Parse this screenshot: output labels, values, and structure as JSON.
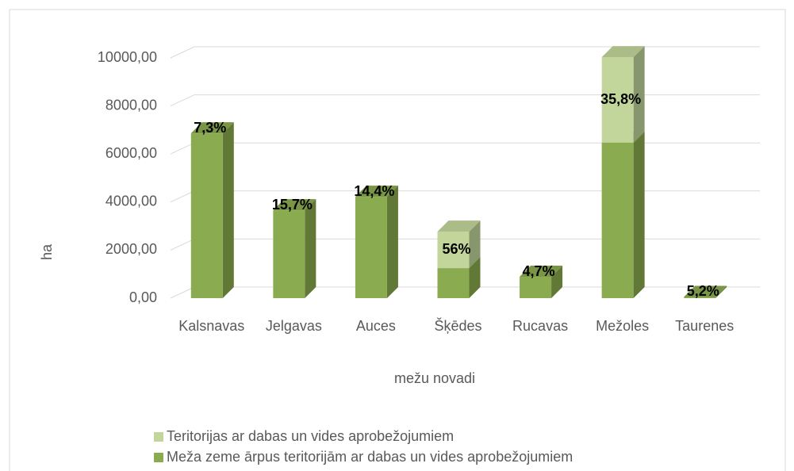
{
  "chart_data": {
    "type": "bar3d_stacked",
    "x_label": "mežu novadi",
    "y_label": "ha",
    "categories": [
      "Kalsnavas",
      "Jelgavas",
      "Auces",
      "Šķēdes",
      "Rucavas",
      "Mežoles",
      "Taurenes"
    ],
    "series": [
      {
        "name": "Meža zeme ārpus teritorijām ar dabas un vides aprobežojumiem",
        "color": "#8aab4f",
        "values": [
          6860,
          3660,
          4220,
          1250,
          890,
          6470,
          50
        ]
      },
      {
        "name": "Teritorijas ar dabas un vides aprobežojumiem",
        "color": "#c2d69b",
        "values": [
          0,
          0,
          0,
          1520,
          0,
          3560,
          0
        ]
      }
    ],
    "percent_labels": [
      "7,3%",
      "15,7%",
      "14,4%",
      "56%",
      "4,7%",
      "35,8%",
      "5,2%"
    ],
    "ylim": [
      0,
      10000
    ],
    "yticks": [
      {
        "value": 0,
        "label": "0,00"
      },
      {
        "value": 2000,
        "label": "2000,00"
      },
      {
        "value": 4000,
        "label": "4000,00"
      },
      {
        "value": 6000,
        "label": "6000,00"
      },
      {
        "value": 8000,
        "label": "8000,00"
      },
      {
        "value": 10000,
        "label": "10000,00"
      }
    ],
    "grid": true,
    "legend": "bottom-left"
  }
}
